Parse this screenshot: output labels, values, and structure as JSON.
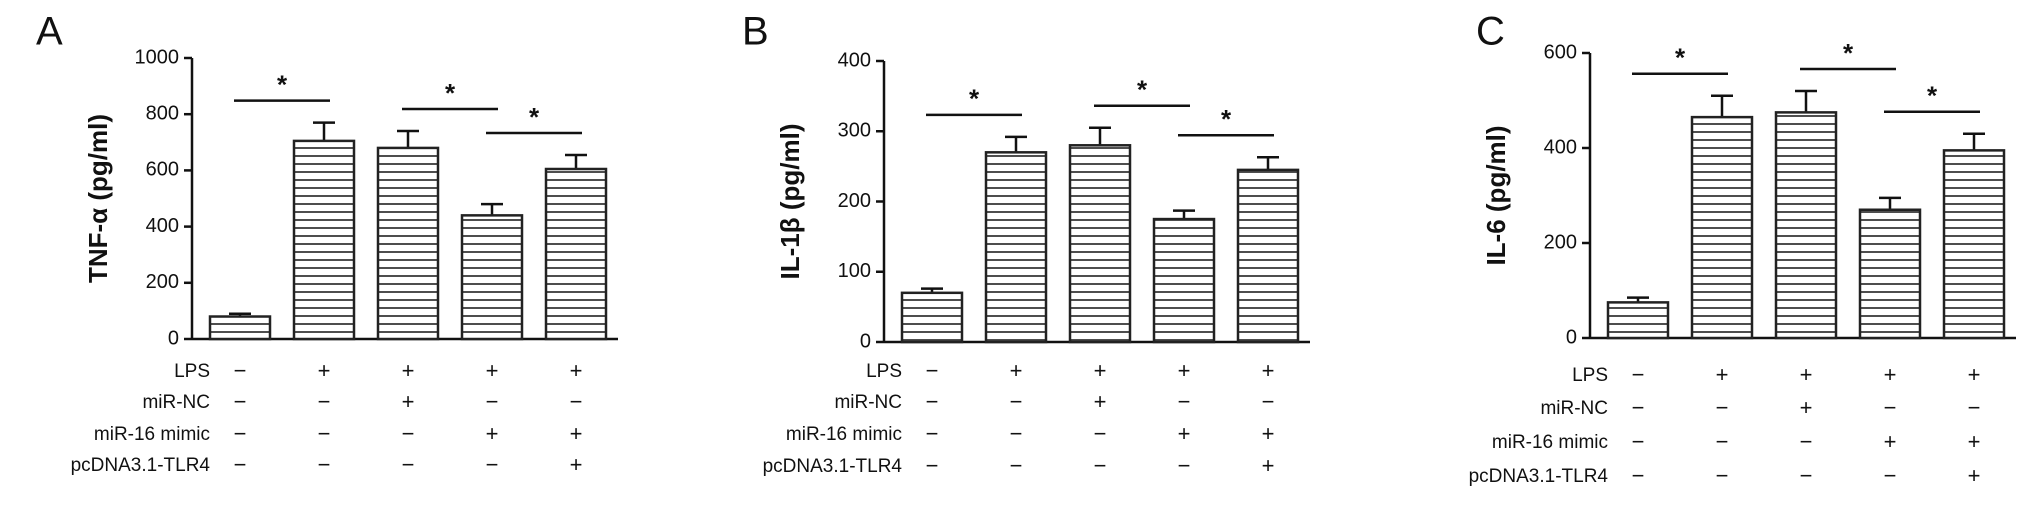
{
  "chart_data": [
    {
      "type": "bar",
      "panel": "A",
      "ylabel": "TNF-α (pg/ml)",
      "color": "#222222",
      "values": [
        80,
        705,
        680,
        440,
        605
      ],
      "errors": [
        10,
        65,
        60,
        40,
        50
      ],
      "ylim": [
        0,
        1000
      ],
      "yticks": [
        0,
        200,
        400,
        600,
        800,
        1000
      ],
      "conditions": [
        {
          "name": "LPS",
          "signs": [
            "−",
            "+",
            "+",
            "+",
            "+"
          ]
        },
        {
          "name": "miR-NC",
          "signs": [
            "−",
            "−",
            "+",
            "−",
            "−"
          ]
        },
        {
          "name": "miR-16 mimic",
          "signs": [
            "−",
            "−",
            "−",
            "+",
            "+"
          ]
        },
        {
          "name": "pcDNA3.1-TLR4",
          "signs": [
            "−",
            "−",
            "−",
            "−",
            "+"
          ]
        }
      ],
      "comparisons": [
        {
          "label": "*",
          "bars": [
            0,
            1
          ]
        },
        {
          "label": "*",
          "bars": [
            2,
            3
          ]
        },
        {
          "label": "*",
          "bars": [
            3,
            4
          ]
        }
      ]
    },
    {
      "type": "bar",
      "panel": "B",
      "ylabel": "IL-1β (pg/ml)",
      "color": "#222222",
      "values": [
        70,
        270,
        280,
        175,
        245
      ],
      "errors": [
        6,
        22,
        25,
        12,
        18
      ],
      "ylim": [
        0,
        400
      ],
      "yticks": [
        0,
        100,
        200,
        300,
        400
      ],
      "conditions": [
        {
          "name": "LPS",
          "signs": [
            "−",
            "+",
            "+",
            "+",
            "+"
          ]
        },
        {
          "name": "miR-NC",
          "signs": [
            "−",
            "−",
            "+",
            "−",
            "−"
          ]
        },
        {
          "name": "miR-16 mimic",
          "signs": [
            "−",
            "−",
            "−",
            "+",
            "+"
          ]
        },
        {
          "name": "pcDNA3.1-TLR4",
          "signs": [
            "−",
            "−",
            "−",
            "−",
            "+"
          ]
        }
      ],
      "comparisons": [
        {
          "label": "*",
          "bars": [
            0,
            1
          ]
        },
        {
          "label": "*",
          "bars": [
            2,
            3
          ]
        },
        {
          "label": "*",
          "bars": [
            3,
            4
          ]
        }
      ]
    },
    {
      "type": "bar",
      "panel": "C",
      "ylabel": "IL-6 (pg/ml)",
      "color": "#222222",
      "values": [
        75,
        465,
        475,
        270,
        395
      ],
      "errors": [
        10,
        45,
        45,
        25,
        35
      ],
      "ylim": [
        0,
        600
      ],
      "yticks": [
        0,
        200,
        400,
        600
      ],
      "conditions": [
        {
          "name": "LPS",
          "signs": [
            "−",
            "+",
            "+",
            "+",
            "+"
          ]
        },
        {
          "name": "miR-NC",
          "signs": [
            "−",
            "−",
            "+",
            "−",
            "−"
          ]
        },
        {
          "name": "miR-16 mimic",
          "signs": [
            "−",
            "−",
            "−",
            "+",
            "+"
          ]
        },
        {
          "name": "pcDNA3.1-TLR4",
          "signs": [
            "−",
            "−",
            "−",
            "−",
            "+"
          ]
        }
      ],
      "comparisons": [
        {
          "label": "*",
          "bars": [
            0,
            1
          ]
        },
        {
          "label": "*",
          "bars": [
            2,
            3
          ]
        },
        {
          "label": "*",
          "bars": [
            3,
            4
          ]
        }
      ]
    }
  ]
}
